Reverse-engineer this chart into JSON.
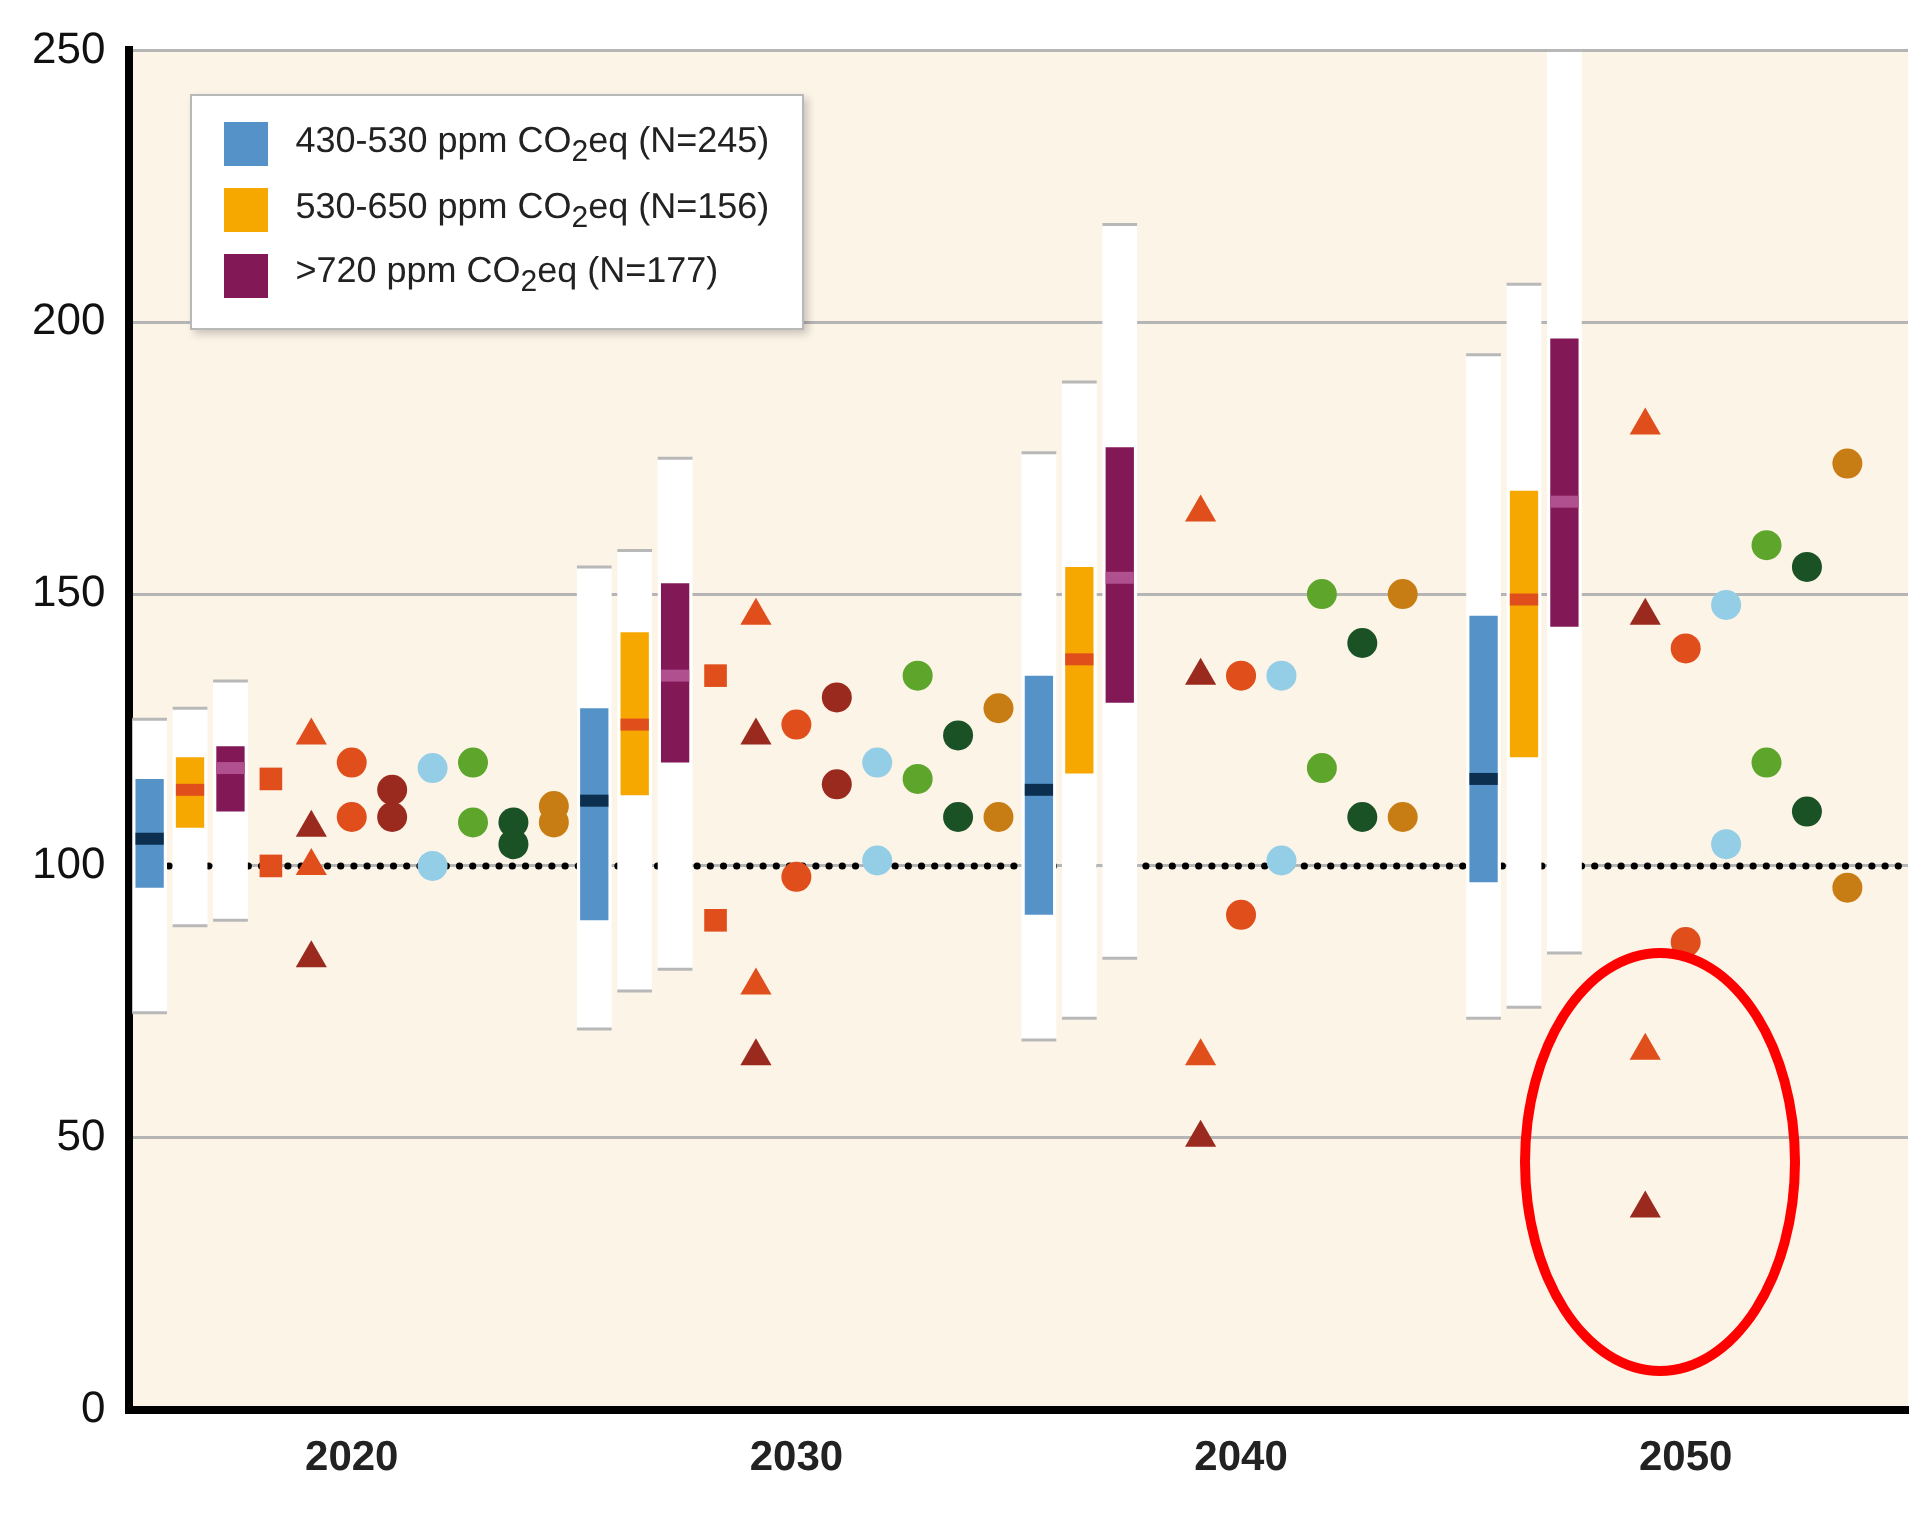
{
  "chart_data": {
    "type": "box",
    "categories": [
      null,
      null,
      null,
      null,
      null,
      "2020",
      null,
      null,
      null,
      null,
      null,
      null,
      null,
      null,
      null,
      null,
      "2030",
      null,
      null,
      null,
      null,
      null,
      null,
      null,
      null,
      null,
      null,
      "2040",
      null,
      null,
      null,
      null,
      null,
      null,
      null,
      null,
      null,
      null,
      "2050",
      null,
      null,
      null,
      null,
      null
    ],
    "ylim": [
      0,
      250
    ],
    "yticks": [
      0,
      50,
      100,
      150,
      200,
      250
    ],
    "grid": "y",
    "legend": "top left",
    "ref_lines": [
      {
        "axis": "y",
        "value": 100,
        "color": "#000000",
        "line_style": "dotted"
      }
    ],
    "series": [
      {
        "name": "430-530 ppm CO$_{2}$eq (N=245)",
        "color": "#5592c8",
        "boxes": [
          {
            "low": 73,
            "q1": 96,
            "median": 105,
            "q3": 116,
            "high": 127
          },
          null,
          null,
          null,
          null,
          null,
          null,
          null,
          null,
          null,
          null,
          {
            "low": 70,
            "q1": 90,
            "median": 112,
            "q3": 129,
            "high": 155
          },
          null,
          null,
          null,
          null,
          null,
          null,
          null,
          null,
          null,
          null,
          {
            "low": 68,
            "q1": 91,
            "median": 114,
            "q3": 135,
            "high": 176
          },
          null,
          null,
          null,
          null,
          null,
          null,
          null,
          null,
          null,
          null,
          {
            "low": 72,
            "q1": 97,
            "median": 116,
            "q3": 146,
            "high": 194
          },
          null,
          null,
          null,
          null,
          null,
          null,
          null,
          null,
          null,
          null
        ]
      },
      {
        "name": "530-650 ppm CO$_{2}$eq (N=156)",
        "color": "#f6a800",
        "boxes": [
          null,
          {
            "low": 89,
            "q1": 107,
            "median": 114,
            "q3": 120,
            "high": 129
          },
          null,
          null,
          null,
          null,
          null,
          null,
          null,
          null,
          null,
          null,
          {
            "low": 77,
            "q1": 113,
            "median": 126,
            "q3": 143,
            "high": 158
          },
          null,
          null,
          null,
          null,
          null,
          null,
          null,
          null,
          null,
          null,
          {
            "low": 72,
            "q1": 117,
            "median": 138,
            "q3": 155,
            "high": 189
          },
          null,
          null,
          null,
          null,
          null,
          null,
          null,
          null,
          null,
          null,
          {
            "low": 74,
            "q1": 120,
            "median": 149,
            "q3": 169,
            "high": 207
          },
          null,
          null,
          null,
          null,
          null,
          null,
          null,
          null,
          null
        ]
      },
      {
        "name": ">720 ppm CO$_{2}$eq (N=177)",
        "color": "#821856",
        "boxes": [
          null,
          null,
          {
            "low": 90,
            "q1": 110,
            "median": 118,
            "q3": 122,
            "high": 134
          },
          null,
          null,
          null,
          null,
          null,
          null,
          null,
          null,
          null,
          null,
          {
            "low": 81,
            "q1": 119,
            "median": 135,
            "q3": 152,
            "high": 175
          },
          null,
          null,
          null,
          null,
          null,
          null,
          null,
          null,
          null,
          null,
          {
            "low": 83,
            "q1": 130,
            "median": 153,
            "q3": 177,
            "high": 218
          },
          null,
          null,
          null,
          null,
          null,
          null,
          null,
          null,
          null,
          null,
          {
            "low": 84,
            "q1": 144,
            "median": 167,
            "q3": 197,
            "high": 250
          },
          null,
          null,
          null,
          null,
          null,
          null,
          null,
          null
        ]
      },
      {
        "type": "scatter",
        "color": "#e04e1b",
        "marker": "square",
        "values": [
          null,
          null,
          null,
          100,
          null,
          null,
          null,
          null,
          null,
          null,
          null,
          null,
          null,
          null,
          90,
          null,
          null,
          null,
          null,
          null,
          null,
          null,
          null,
          null,
          null,
          null,
          null,
          null,
          null,
          null,
          null,
          null,
          null,
          null,
          null,
          null,
          null,
          null,
          null,
          null,
          null,
          null,
          null,
          null
        ]
      },
      {
        "type": "scatter",
        "color": "#e04e1b",
        "marker": "square",
        "values": [
          null,
          null,
          null,
          116,
          null,
          null,
          null,
          null,
          null,
          null,
          null,
          null,
          null,
          null,
          135,
          null,
          null,
          null,
          null,
          null,
          null,
          null,
          null,
          null,
          null,
          null,
          null,
          null,
          null,
          null,
          null,
          null,
          null,
          null,
          null,
          null,
          null,
          null,
          null,
          null,
          null,
          null,
          null,
          null
        ]
      },
      {
        "type": "scatter",
        "color": "#e04e1b",
        "marker": "triangle",
        "values": [
          null,
          null,
          null,
          null,
          124,
          null,
          null,
          null,
          null,
          null,
          null,
          null,
          null,
          null,
          null,
          146,
          null,
          null,
          null,
          null,
          null,
          null,
          null,
          null,
          null,
          null,
          165,
          null,
          null,
          null,
          null,
          null,
          null,
          null,
          null,
          null,
          null,
          181,
          null,
          null,
          null,
          null,
          null,
          null
        ]
      },
      {
        "type": "scatter",
        "color": "#9b2a1e",
        "marker": "triangle",
        "values": [
          null,
          null,
          null,
          null,
          107,
          null,
          null,
          null,
          null,
          null,
          null,
          null,
          null,
          null,
          null,
          124,
          null,
          null,
          null,
          null,
          null,
          null,
          null,
          null,
          null,
          null,
          135,
          null,
          null,
          null,
          null,
          null,
          null,
          null,
          null,
          null,
          null,
          146,
          null,
          null,
          null,
          null,
          null,
          null
        ]
      },
      {
        "type": "scatter",
        "color": "#e04e1b",
        "marker": "triangle",
        "values": [
          null,
          null,
          null,
          null,
          100,
          null,
          null,
          null,
          null,
          null,
          null,
          null,
          null,
          null,
          null,
          78,
          null,
          null,
          null,
          null,
          null,
          null,
          null,
          null,
          null,
          null,
          65,
          null,
          null,
          null,
          null,
          null,
          null,
          null,
          null,
          null,
          null,
          66,
          null,
          null,
          null,
          null,
          null,
          null
        ]
      },
      {
        "type": "scatter",
        "color": "#9b2a1e",
        "marker": "triangle",
        "values": [
          null,
          null,
          null,
          null,
          83,
          null,
          null,
          null,
          null,
          null,
          null,
          null,
          null,
          null,
          null,
          65,
          null,
          null,
          null,
          null,
          null,
          null,
          null,
          null,
          null,
          null,
          50,
          null,
          null,
          null,
          null,
          null,
          null,
          null,
          null,
          null,
          null,
          37,
          null,
          null,
          null,
          null,
          null,
          null
        ]
      },
      {
        "type": "scatter",
        "color": "#e04e1b",
        "marker": "circle",
        "values": [
          null,
          null,
          null,
          null,
          null,
          119,
          null,
          null,
          null,
          null,
          null,
          null,
          null,
          null,
          null,
          null,
          126,
          null,
          null,
          null,
          null,
          null,
          null,
          null,
          null,
          null,
          null,
          135,
          null,
          null,
          null,
          null,
          null,
          null,
          null,
          null,
          null,
          null,
          140,
          null,
          null,
          null,
          null,
          null
        ]
      },
      {
        "type": "scatter",
        "color": "#e04e1b",
        "marker": "circle",
        "values": [
          null,
          null,
          null,
          null,
          null,
          109,
          null,
          null,
          null,
          null,
          null,
          null,
          null,
          null,
          null,
          null,
          98,
          null,
          null,
          null,
          null,
          null,
          null,
          null,
          null,
          null,
          null,
          91,
          null,
          null,
          null,
          null,
          null,
          null,
          null,
          null,
          null,
          null,
          86,
          null,
          null,
          null,
          null,
          null
        ]
      },
      {
        "type": "scatter",
        "color": "#9b2a1e",
        "marker": "circle",
        "values": [
          null,
          null,
          null,
          null,
          null,
          null,
          114,
          null,
          null,
          null,
          null,
          null,
          null,
          null,
          null,
          null,
          null,
          131,
          null,
          null,
          null,
          null,
          null,
          null,
          null,
          null,
          null,
          null,
          null,
          null,
          null,
          null,
          null,
          null,
          null,
          null,
          null,
          null,
          null,
          null,
          null,
          null,
          null,
          null
        ]
      },
      {
        "type": "scatter",
        "color": "#9b2a1e",
        "marker": "circle",
        "values": [
          null,
          null,
          null,
          null,
          null,
          null,
          109,
          null,
          null,
          null,
          null,
          null,
          null,
          null,
          null,
          null,
          null,
          115,
          null,
          null,
          null,
          null,
          null,
          null,
          null,
          null,
          null,
          null,
          null,
          null,
          null,
          null,
          null,
          null,
          null,
          null,
          null,
          null,
          null,
          null,
          null,
          null,
          null,
          null
        ]
      },
      {
        "type": "scatter",
        "color": "#93cde6",
        "marker": "circle",
        "values": [
          null,
          null,
          null,
          null,
          null,
          null,
          null,
          118,
          null,
          null,
          null,
          null,
          null,
          null,
          null,
          null,
          null,
          null,
          119,
          null,
          null,
          null,
          null,
          null,
          null,
          null,
          null,
          null,
          135,
          null,
          null,
          null,
          null,
          null,
          null,
          null,
          null,
          null,
          null,
          148,
          null,
          null,
          null,
          null
        ]
      },
      {
        "type": "scatter",
        "color": "#93cde6",
        "marker": "circle",
        "values": [
          null,
          null,
          null,
          null,
          null,
          null,
          null,
          100,
          null,
          null,
          null,
          null,
          null,
          null,
          null,
          null,
          null,
          null,
          101,
          null,
          null,
          null,
          null,
          null,
          null,
          null,
          null,
          null,
          101,
          null,
          null,
          null,
          null,
          null,
          null,
          null,
          null,
          null,
          null,
          104,
          null,
          null,
          null,
          null
        ]
      },
      {
        "type": "scatter",
        "color": "#5ea52c",
        "marker": "circle",
        "values": [
          null,
          null,
          null,
          null,
          null,
          null,
          null,
          null,
          119,
          null,
          null,
          null,
          null,
          null,
          null,
          null,
          null,
          null,
          null,
          135,
          null,
          null,
          null,
          null,
          null,
          null,
          null,
          null,
          null,
          150,
          null,
          null,
          null,
          null,
          null,
          null,
          null,
          null,
          null,
          null,
          159,
          null,
          null,
          null
        ]
      },
      {
        "type": "scatter",
        "color": "#5ea52c",
        "marker": "circle",
        "values": [
          null,
          null,
          null,
          null,
          null,
          null,
          null,
          null,
          108,
          null,
          null,
          null,
          null,
          null,
          null,
          null,
          null,
          null,
          null,
          116,
          null,
          null,
          null,
          null,
          null,
          null,
          null,
          null,
          null,
          118,
          null,
          null,
          null,
          null,
          null,
          null,
          null,
          null,
          null,
          null,
          119,
          null,
          null,
          null
        ]
      },
      {
        "type": "scatter",
        "color": "#1a5225",
        "marker": "circle",
        "values": [
          null,
          null,
          null,
          null,
          null,
          null,
          null,
          null,
          null,
          108,
          null,
          null,
          null,
          null,
          null,
          null,
          null,
          null,
          null,
          null,
          124,
          null,
          null,
          null,
          null,
          null,
          null,
          null,
          null,
          null,
          141,
          null,
          null,
          null,
          null,
          null,
          null,
          null,
          null,
          null,
          null,
          155,
          null,
          null
        ]
      },
      {
        "type": "scatter",
        "color": "#1a5225",
        "marker": "circle",
        "values": [
          null,
          null,
          null,
          null,
          null,
          null,
          null,
          null,
          null,
          104,
          null,
          null,
          null,
          null,
          null,
          null,
          null,
          null,
          null,
          null,
          109,
          null,
          null,
          null,
          null,
          null,
          null,
          null,
          null,
          null,
          109,
          null,
          null,
          null,
          null,
          null,
          null,
          null,
          null,
          null,
          null,
          110,
          null,
          null
        ]
      },
      {
        "type": "scatter",
        "color": "#c87d14",
        "marker": "circle",
        "values": [
          null,
          null,
          null,
          null,
          null,
          null,
          null,
          null,
          null,
          null,
          111,
          null,
          null,
          null,
          null,
          null,
          null,
          null,
          null,
          null,
          null,
          129,
          null,
          null,
          null,
          null,
          null,
          null,
          null,
          null,
          null,
          150,
          null,
          null,
          null,
          null,
          null,
          null,
          null,
          null,
          null,
          null,
          174,
          null
        ]
      },
      {
        "type": "scatter",
        "color": "#c87d14",
        "marker": "circle",
        "values": [
          null,
          null,
          null,
          null,
          null,
          null,
          null,
          null,
          null,
          null,
          108,
          null,
          null,
          null,
          null,
          null,
          null,
          null,
          null,
          null,
          null,
          109,
          null,
          null,
          null,
          null,
          null,
          null,
          null,
          null,
          null,
          109,
          null,
          null,
          null,
          null,
          null,
          null,
          null,
          null,
          null,
          null,
          96,
          null
        ]
      }
    ]
  }
}
